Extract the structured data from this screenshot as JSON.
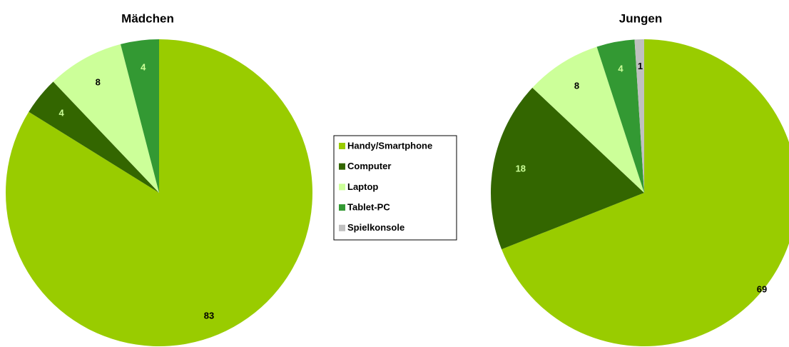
{
  "chart_data": [
    {
      "type": "pie",
      "title": "Mädchen",
      "categories": [
        "Handy/Smartphone",
        "Computer",
        "Laptop",
        "Tablet-PC"
      ],
      "values": [
        83,
        4,
        8,
        4
      ],
      "colors": [
        "#99cc00",
        "#336600",
        "#ccff99",
        "#339933"
      ]
    },
    {
      "type": "pie",
      "title": "Jungen",
      "categories": [
        "Handy/Smartphone",
        "Computer",
        "Laptop",
        "Tablet-PC",
        "Spielkonsole"
      ],
      "values": [
        69,
        18,
        8,
        4,
        1
      ],
      "colors": [
        "#99cc00",
        "#336600",
        "#ccff99",
        "#339933",
        "#c0c0c0"
      ]
    }
  ]
}
